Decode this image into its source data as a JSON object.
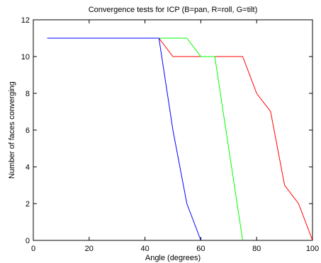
{
  "chart_data": {
    "type": "line",
    "title": "Convergence tests for ICP (B=pan, R=roll, G=tilt)",
    "xlabel": "Angle (degrees)",
    "ylabel": "Number of faces converging",
    "xlim": [
      0,
      100
    ],
    "ylim": [
      0,
      12
    ],
    "xticks": [
      0,
      20,
      40,
      60,
      80,
      100
    ],
    "yticks": [
      0,
      2,
      4,
      6,
      8,
      10,
      12
    ],
    "grid": false,
    "series": [
      {
        "color": "#ff0000",
        "x": [
          5,
          45,
          50,
          55,
          60,
          65,
          70,
          75,
          80,
          85,
          90,
          95,
          100
        ],
        "y": [
          11,
          11,
          10,
          10,
          10,
          10,
          10,
          10,
          8,
          7,
          3,
          2,
          0
        ]
      },
      {
        "color": "#00ff00",
        "x": [
          5,
          45,
          50,
          55,
          60,
          65,
          70,
          75
        ],
        "y": [
          11,
          11,
          11,
          11,
          10,
          10,
          5,
          0
        ]
      },
      {
        "color": "#0000ff",
        "x": [
          5,
          45,
          50,
          55,
          60
        ],
        "y": [
          11,
          11,
          6,
          2,
          0
        ]
      }
    ]
  }
}
